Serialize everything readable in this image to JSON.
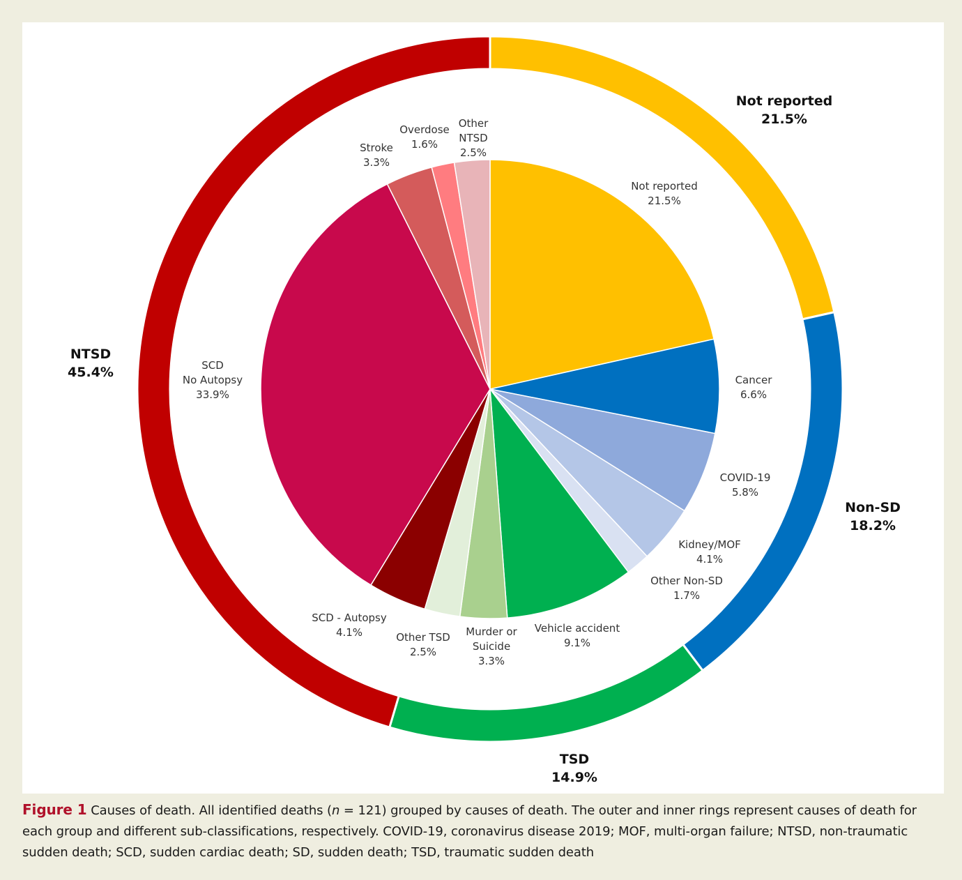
{
  "chart_data": {
    "type": "pie",
    "subtype": "nested-donut",
    "n": 121,
    "outer_ring": [
      {
        "name": "Not reported",
        "label": "21.5%",
        "value": 21.5,
        "color": "#FFC000"
      },
      {
        "name": "Non-SD",
        "label": "18.2%",
        "value": 18.2,
        "color": "#0070C0"
      },
      {
        "name": "TSD",
        "label": "14.9%",
        "value": 14.9,
        "color": "#00B050"
      },
      {
        "name": "NTSD",
        "label": "45.4%",
        "value": 45.4,
        "color": "#C00000"
      }
    ],
    "inner_pie": [
      {
        "name": "Not reported",
        "label": "21.5%",
        "value": 21.5,
        "color": "#FFC000"
      },
      {
        "name": "Cancer",
        "label": "6.6%",
        "value": 6.6,
        "color": "#0070C0"
      },
      {
        "name": "COVID-19",
        "label": "5.8%",
        "value": 5.8,
        "color": "#8EA9DB"
      },
      {
        "name": "Kidney/MOF",
        "label": "4.1%",
        "value": 4.1,
        "color": "#B4C6E7"
      },
      {
        "name": "Other Non-SD",
        "label": "1.7%",
        "value": 1.7,
        "color": "#D9E1F2"
      },
      {
        "name": "Vehicle accident",
        "label": "9.1%",
        "value": 9.1,
        "color": "#00B050"
      },
      {
        "name": "Murder or Suicide",
        "label": "3.3%",
        "value": 3.3,
        "color": "#A9D08E"
      },
      {
        "name": "Other TSD",
        "label": "2.5%",
        "value": 2.5,
        "color": "#E2EFDA"
      },
      {
        "name": "SCD - Autopsy",
        "label": "4.1%",
        "value": 4.1,
        "color": "#8B0000"
      },
      {
        "name": "SCD No Autopsy",
        "label": "33.9%",
        "value": 33.9,
        "color": "#C8094C"
      },
      {
        "name": "Stroke",
        "label": "3.3%",
        "value": 3.3,
        "color": "#D45B5B"
      },
      {
        "name": "Overdose",
        "label": "1.6%",
        "value": 1.6,
        "color": "#FF7C80"
      },
      {
        "name": "Other NTSD",
        "label": "2.5%",
        "value": 2.5,
        "color": "#E8B4B8"
      }
    ],
    "legend": "none"
  },
  "caption": {
    "label": "Figure 1",
    "text_before_n": " Causes of death. All identified deaths (",
    "n_symbol": "n",
    "text_after_n": " = 121) grouped by causes of death. The outer and inner rings represent causes of death for each group and different sub-classifications, respectively. COVID-19, coronavirus disease 2019; MOF, multi-organ failure; NTSD, non-traumatic sudden death; SCD, sudden cardiac death; SD, sudden death; TSD, traumatic sudden death"
  }
}
